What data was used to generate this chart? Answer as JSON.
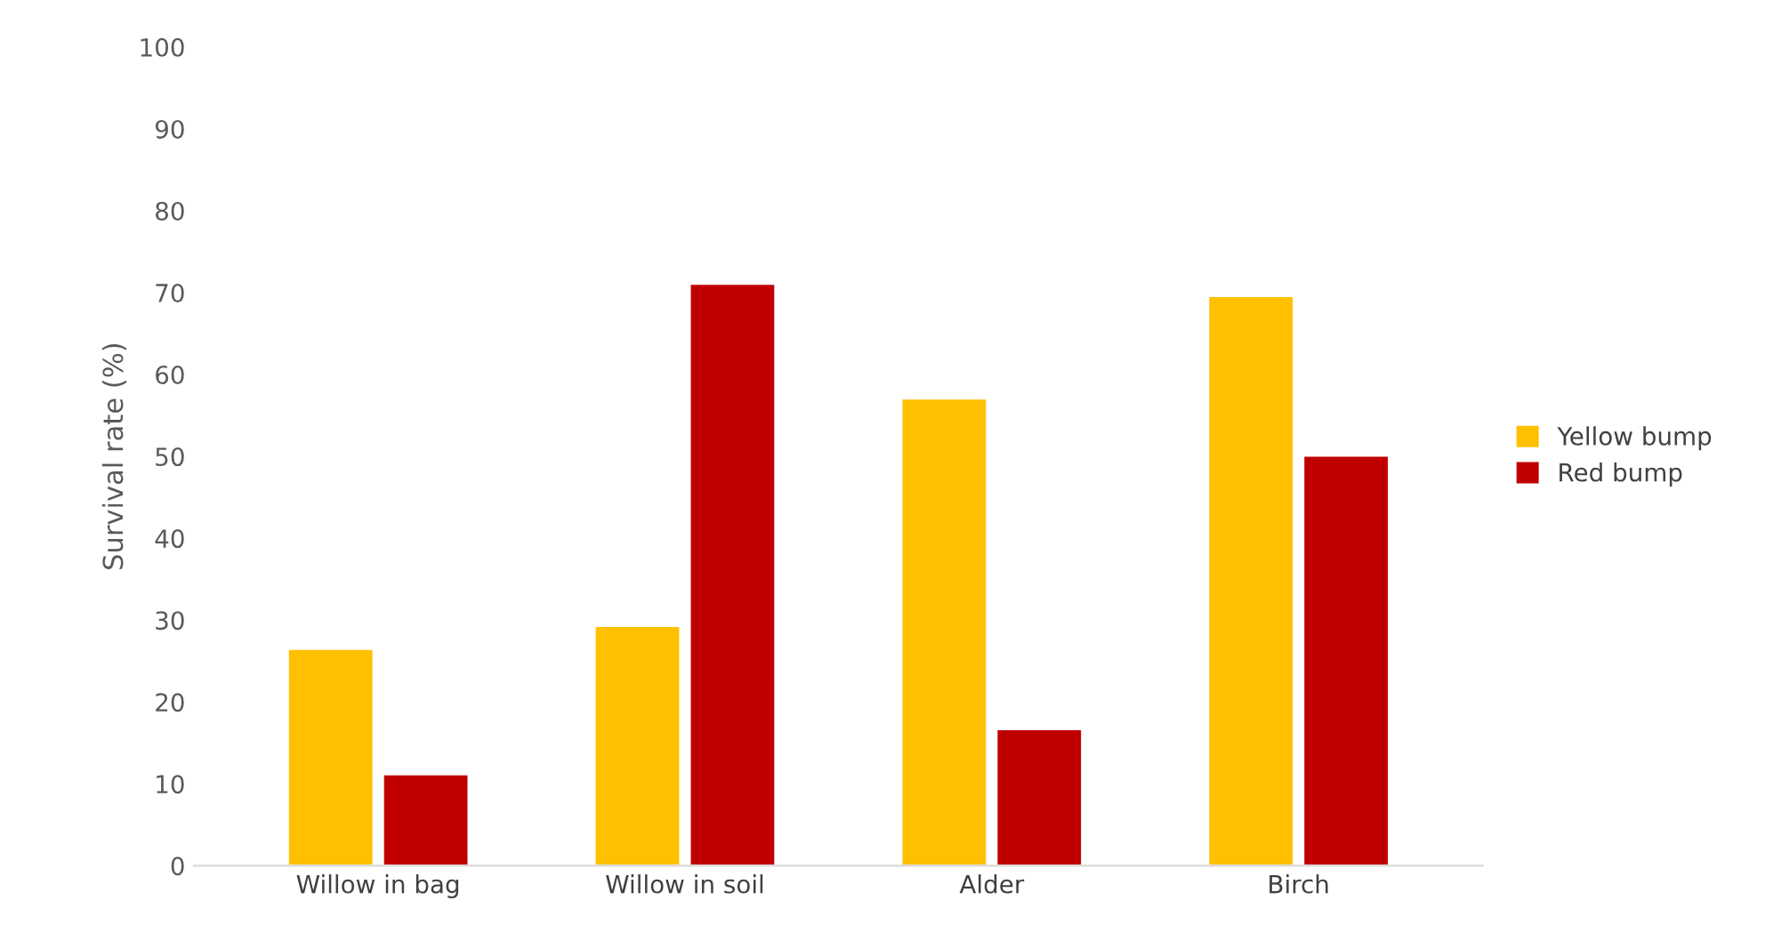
{
  "chart_data": {
    "type": "bar",
    "ylabel": "Survival rate (%)",
    "categories": [
      "Willow in bag",
      "Willow in soil",
      "Alder",
      "Birch"
    ],
    "series": [
      {
        "name": "Yellow bump",
        "color": "#ffc000",
        "values": [
          26.5,
          29.3,
          57.1,
          69.6
        ]
      },
      {
        "name": "Red bump",
        "color": "#c00000",
        "values": [
          11.2,
          71.1,
          16.7,
          50.1
        ]
      }
    ],
    "ylim": [
      0,
      100
    ],
    "yticks": [
      0,
      10,
      20,
      30,
      40,
      50,
      60,
      70,
      80,
      90,
      100
    ],
    "grid": false,
    "legend": "right"
  }
}
